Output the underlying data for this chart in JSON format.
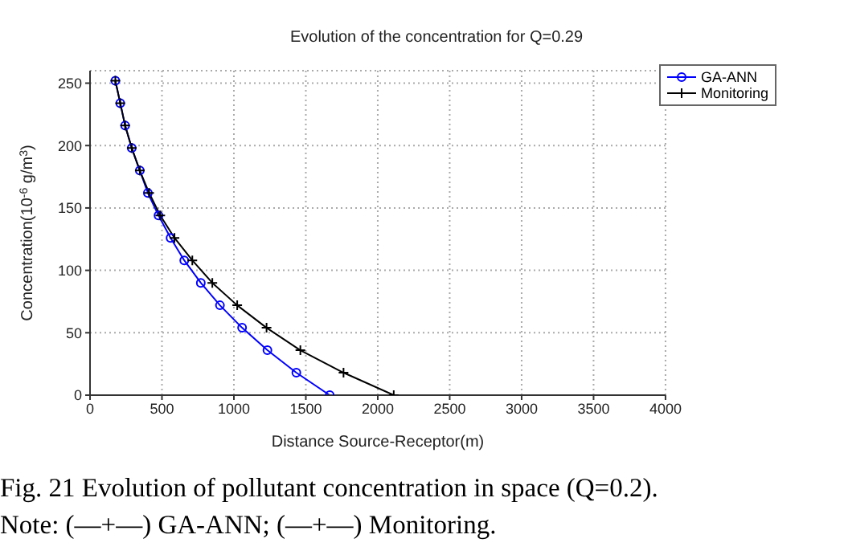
{
  "chart_data": {
    "type": "line",
    "title": "Evolution of the concentration for Q=0.29",
    "xlabel": "Distance Source-Receptor(m)",
    "ylabel": "Concentration(10$^{-6}$ g/m$^{3}$)",
    "annotations": [
      "Fig. 21 Evolution of pollutant concentration in space (Q=0.2).",
      "Note: (—+—) GA-ANN; (—+—) Monitoring."
    ],
    "xlim": [
      0,
      4000
    ],
    "xticks": [
      0,
      500,
      1000,
      1500,
      2000,
      2500,
      3000,
      3500,
      4000
    ],
    "ylim": [
      0,
      260
    ],
    "yticks": [
      0,
      50,
      100,
      150,
      200,
      250
    ],
    "grid": true,
    "legend": "top right",
    "series": [
      {
        "name": "GA-ANN",
        "color": "#0000ff",
        "marker": "circle",
        "x": [
          176,
          210,
          244,
          290,
          346,
          402,
          476,
          560,
          655,
          770,
          903,
          1057,
          1233,
          1434,
          1666
        ],
        "values": [
          252,
          234,
          216,
          198,
          180,
          162,
          144,
          126,
          108,
          90,
          72,
          54,
          36,
          18,
          0
        ]
      },
      {
        "name": "Monitoring",
        "color": "#000000",
        "marker": "cross",
        "x": [
          176,
          210,
          244,
          290,
          346,
          411,
          488,
          587,
          711,
          850,
          1023,
          1227,
          1462,
          1762,
          2111
        ],
        "values": [
          252,
          234,
          216,
          198,
          180,
          162,
          144,
          126,
          108,
          90,
          72,
          54,
          36,
          18,
          0
        ]
      }
    ]
  }
}
